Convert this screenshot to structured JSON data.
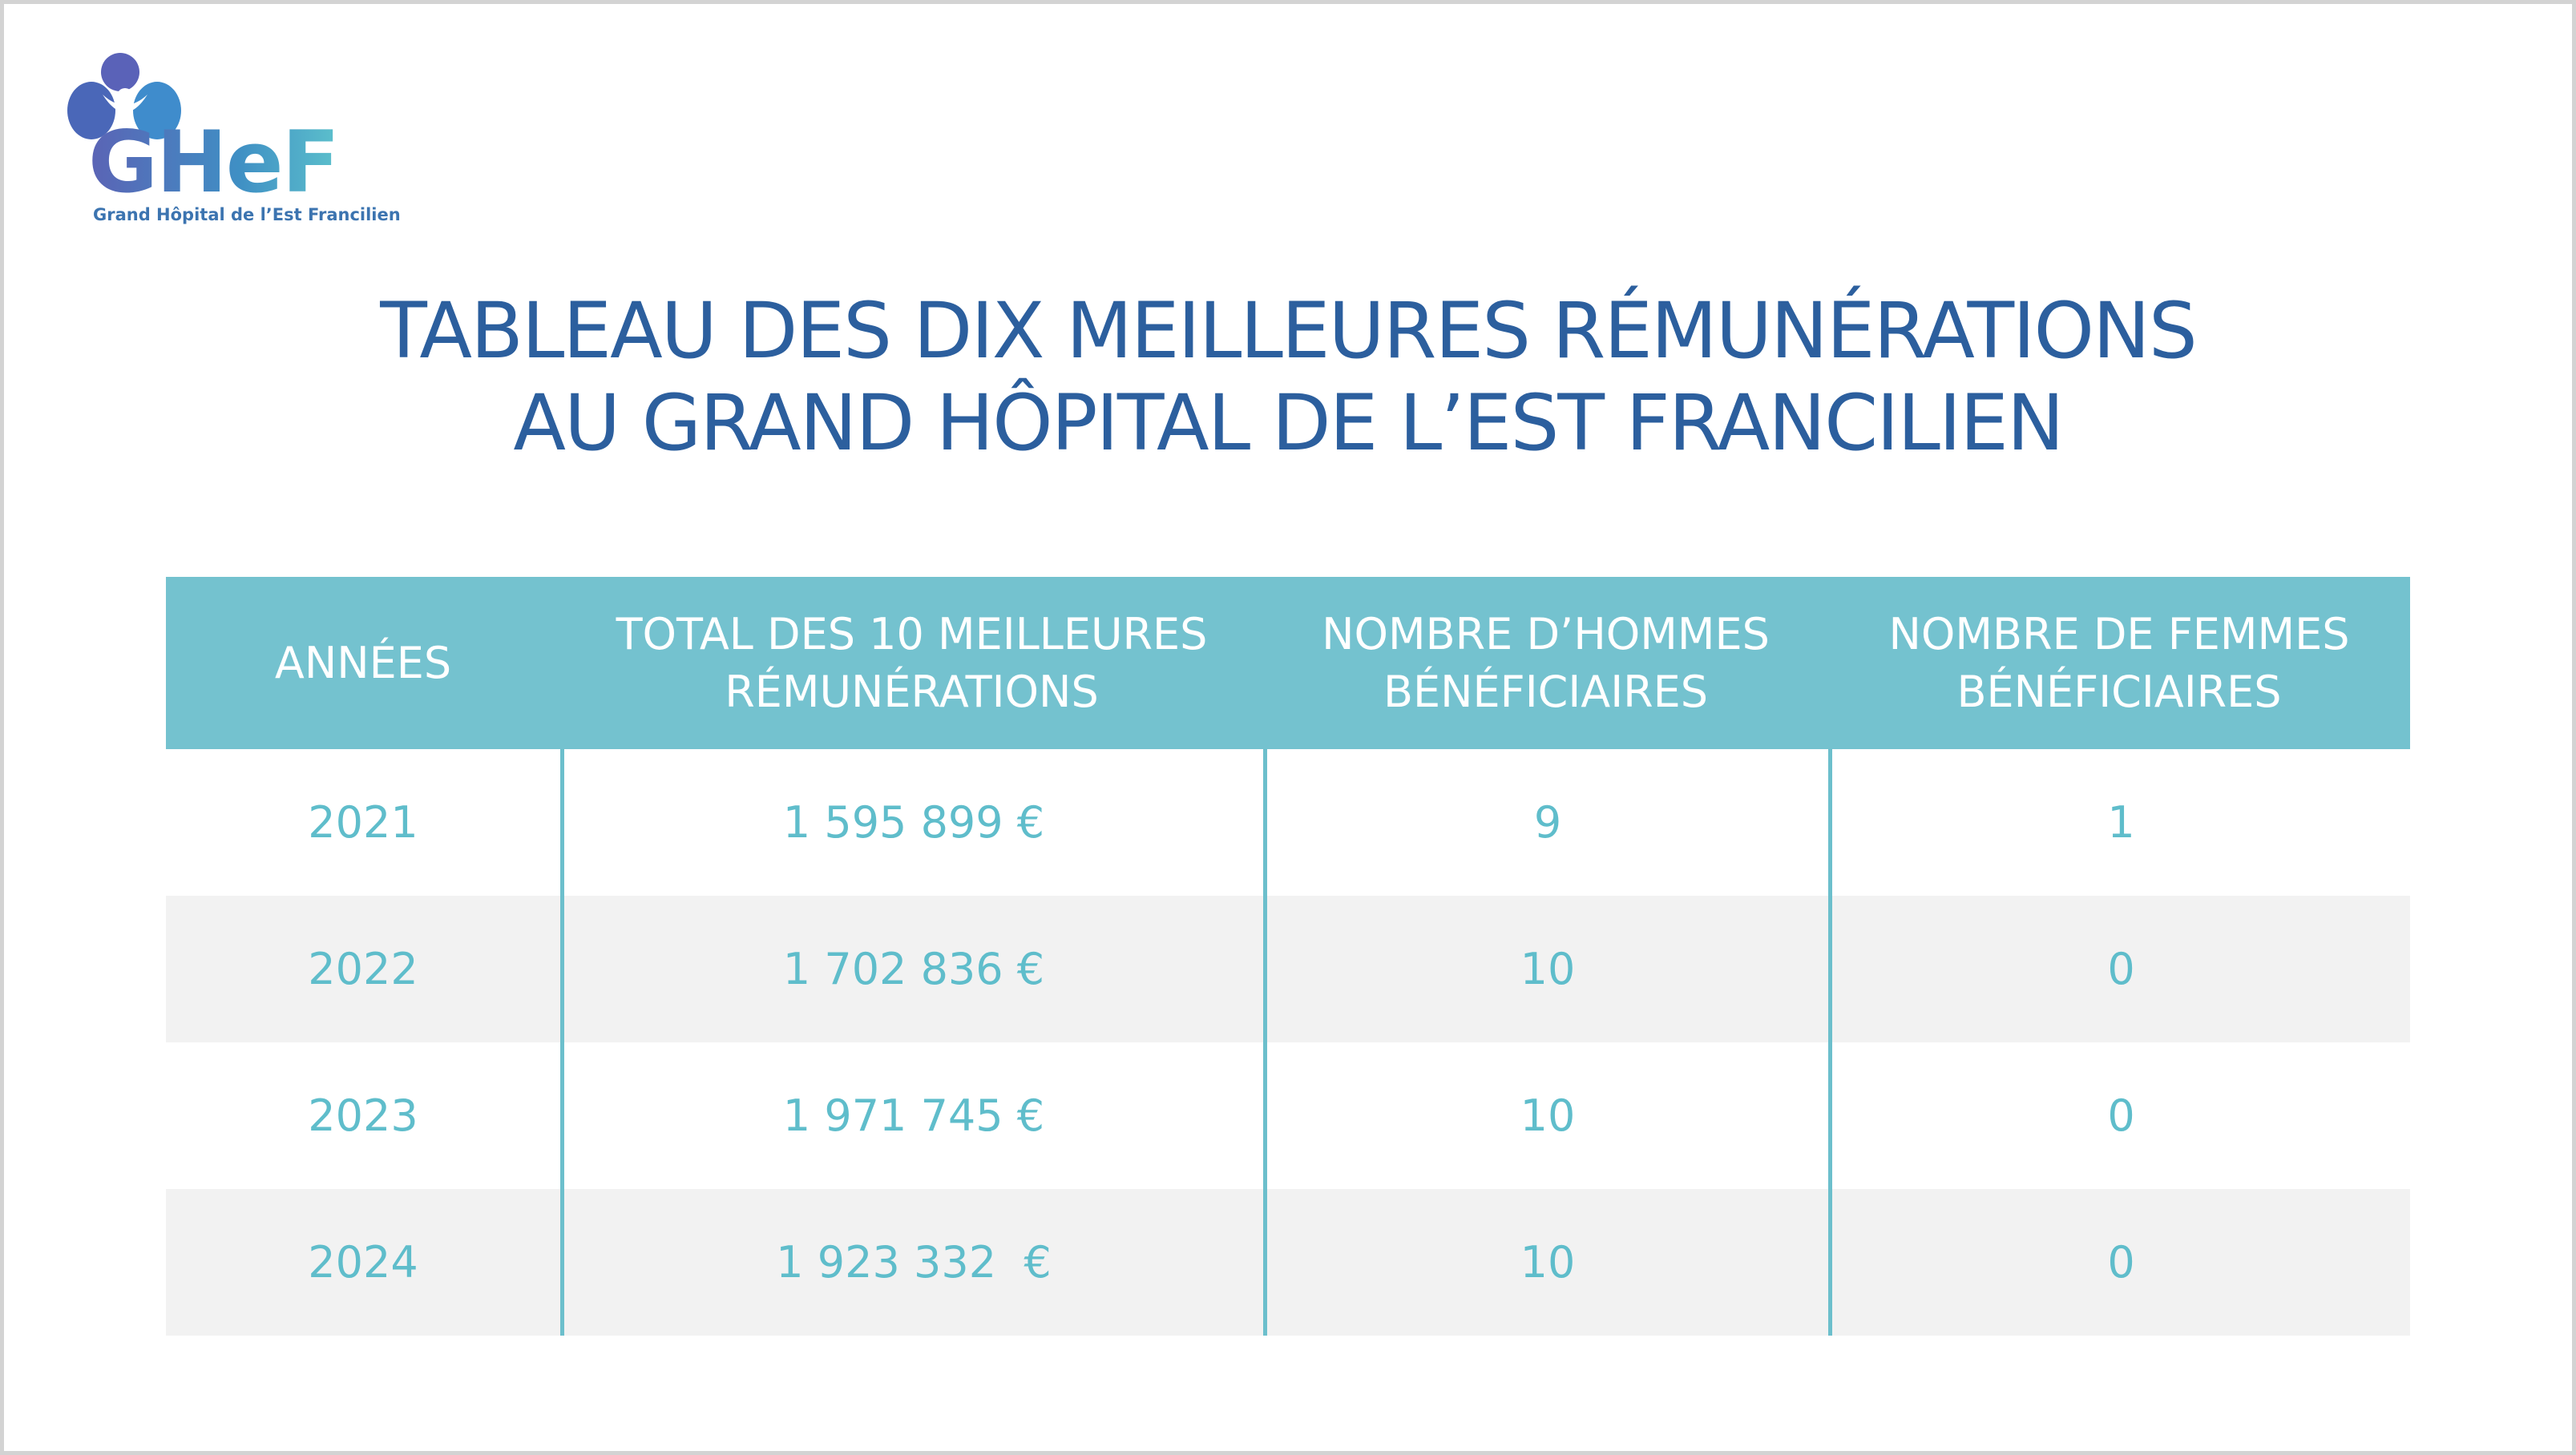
{
  "logo": {
    "mark": "GHeF",
    "name": "Grand Hôpital de l’Est Francilien"
  },
  "title": {
    "lines": [
      "TABLEAU DES DIX MEILLEURES RÉMUNÉRATIONS",
      "AU GRAND HÔPITAL DE L’EST FRANCILIEN"
    ]
  },
  "table": {
    "headers": [
      "ANNÉES",
      "TOTAL DES 10 MEILLEURES RÉMUNÉRATIONS",
      "NOMBRE D’HOMMES BÉNÉFICIAIRES",
      "NOMBRE DE FEMMES BÉNÉFICIAIRES"
    ],
    "rows": [
      [
        "2021",
        "1 595 899 €",
        "9",
        "1"
      ],
      [
        "2022",
        "1 702 836 €",
        "10",
        "0"
      ],
      [
        "2023",
        "1 971 745 €",
        "10",
        "0"
      ],
      [
        "2024",
        "1 923 332  €",
        "10",
        "0"
      ]
    ]
  }
}
